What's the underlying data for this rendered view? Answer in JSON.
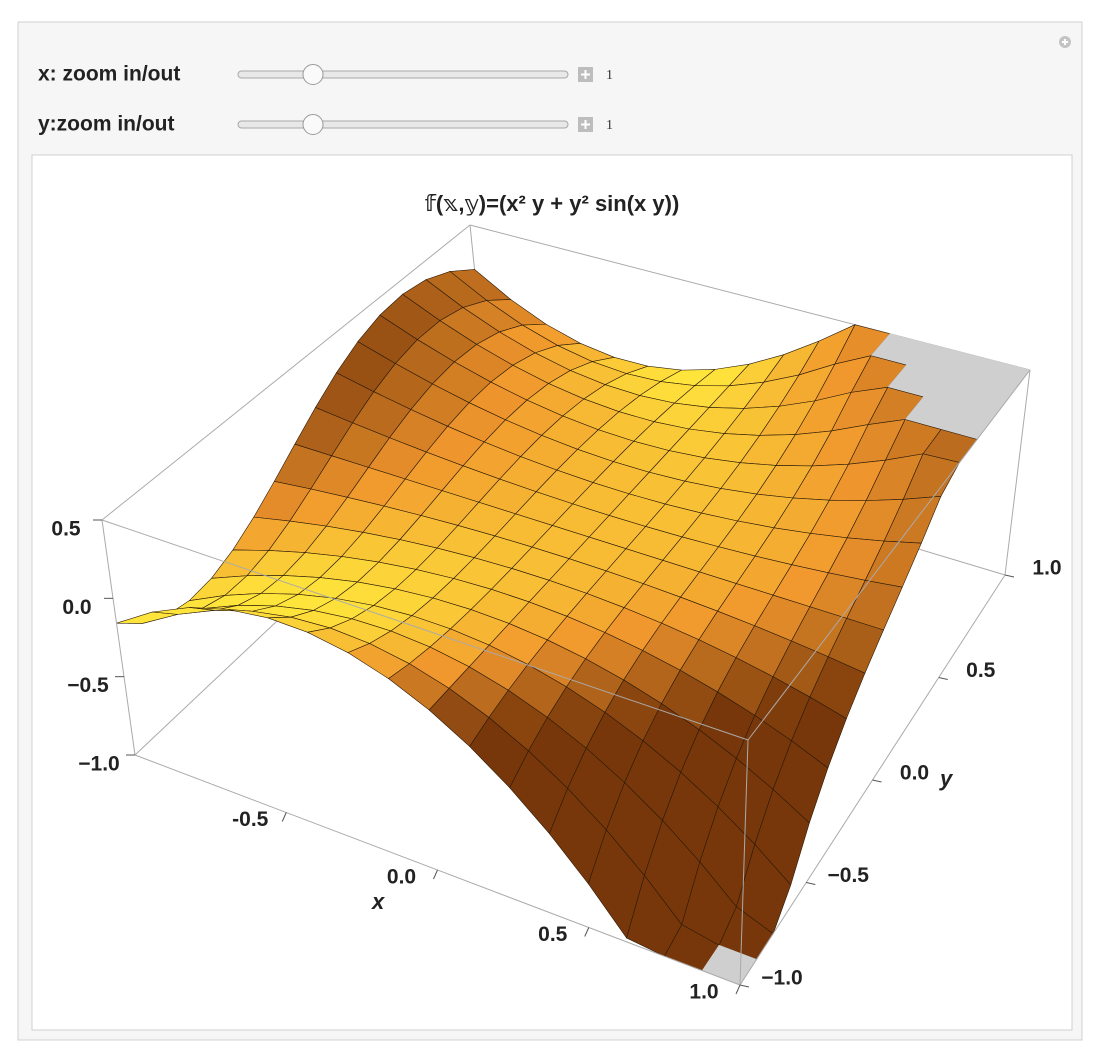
{
  "controls": [
    {
      "label": "x: zoom in/out",
      "value": 1
    },
    {
      "label": "y:zoom in/out",
      "value": 1
    }
  ],
  "plot": {
    "title": "𝕗(𝕩,𝕪)=(x² y + y² sin(x y))",
    "xlabel": "x",
    "ylabel": "y",
    "xlim": [
      -1,
      1
    ],
    "ylim": [
      -1,
      1
    ],
    "zlim": [
      -1,
      0.5
    ],
    "xticks": [
      -0.5,
      {
        "value": 0,
        "label": "0.0"
      },
      0.5,
      {
        "value": 1,
        "label": "1.0"
      }
    ],
    "yticks": [
      {
        "value": -1,
        "label": "−1.0"
      },
      {
        "value": -0.5,
        "label": "−0.5"
      },
      {
        "value": 0,
        "label": "0.0"
      },
      0.5,
      {
        "value": 1,
        "label": "1.0"
      }
    ],
    "zticks": [
      0.5,
      {
        "value": 0,
        "label": "0.0"
      },
      {
        "value": -0.5,
        "label": "−0.5"
      },
      {
        "value": -1,
        "label": "−1.0"
      }
    ]
  }
}
